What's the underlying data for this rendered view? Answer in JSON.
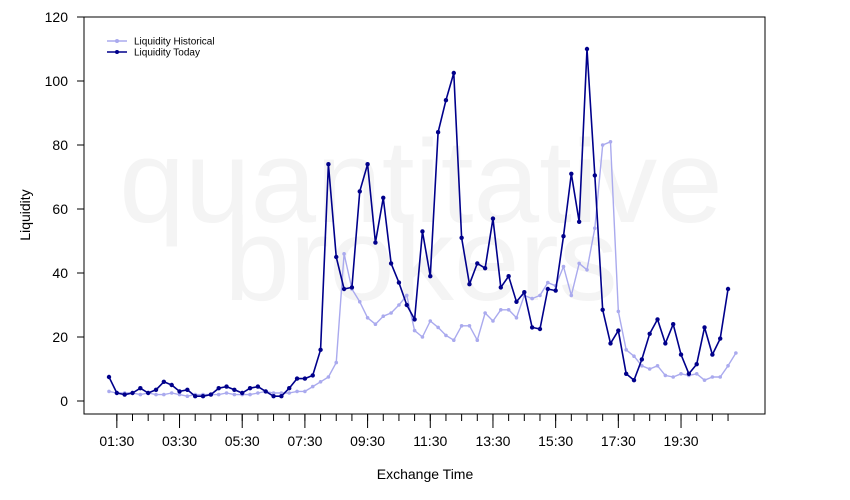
{
  "chart_data": {
    "type": "line",
    "title": "",
    "xlabel": "Exchange Time",
    "ylabel": "Liquidity",
    "ylim": [
      0,
      120
    ],
    "y_ticks": [
      0,
      20,
      40,
      60,
      80,
      100,
      120
    ],
    "x_tick_labels": [
      "01:30",
      "03:30",
      "05:30",
      "07:30",
      "09:30",
      "11:30",
      "13:30",
      "15:30",
      "17:30",
      "19:30"
    ],
    "watermark": [
      "quantitative",
      "brokers"
    ],
    "legend_position": "top-left",
    "grid": false,
    "series": [
      {
        "name": "Liquidity Historical",
        "color": "#aaaaee",
        "values": [
          3.0,
          2.5,
          2.5,
          2.5,
          2.0,
          2.5,
          2.0,
          2.0,
          2.5,
          2.0,
          1.5,
          2.0,
          2.0,
          2.0,
          2.0,
          2.5,
          2.0,
          2.0,
          2.0,
          2.5,
          3.0,
          2.5,
          2.5,
          2.5,
          3.0,
          3.0,
          4.5,
          6.0,
          7.5,
          12.0,
          46.0,
          35.0,
          31.0,
          26.0,
          24.0,
          26.5,
          27.5,
          30.0,
          33.0,
          22.0,
          20.0,
          25.0,
          23.0,
          20.5,
          19.0,
          23.5,
          23.5,
          19.0,
          27.5,
          25.0,
          28.5,
          28.5,
          26.0,
          33.0,
          32.0,
          33.0,
          37.0,
          36.0,
          42.0,
          33.0,
          43.0,
          41.0,
          54.0,
          80.0,
          81.0,
          28.0,
          16.0,
          14.0,
          11.0,
          10.0,
          11.0,
          8.0,
          7.5,
          8.5,
          8.0,
          8.5,
          6.5,
          7.5,
          7.5,
          11.0,
          15.0
        ]
      },
      {
        "name": "Liquidity Today",
        "color": "#00008b",
        "values": [
          7.5,
          2.5,
          2.0,
          2.5,
          4.0,
          2.5,
          3.5,
          6.0,
          5.0,
          3.0,
          3.5,
          1.5,
          1.5,
          2.0,
          4.0,
          4.5,
          3.5,
          2.5,
          4.0,
          4.5,
          3.0,
          1.5,
          1.5,
          4.0,
          7.0,
          7.0,
          8.0,
          16.0,
          74.0,
          45.0,
          35.0,
          35.5,
          65.5,
          74.0,
          49.5,
          63.5,
          43.0,
          37.0,
          30.0,
          25.5,
          53.0,
          39.0,
          84.0,
          94.0,
          102.5,
          51.0,
          36.5,
          43.0,
          41.5,
          57.0,
          35.5,
          39.0,
          31.0,
          34.0,
          23.0,
          22.5,
          35.0,
          34.5,
          51.5,
          71.0,
          56.0,
          110.0,
          70.5,
          28.5,
          18.0,
          22.0,
          8.5,
          6.5,
          13.0,
          21.0,
          25.5,
          18.0,
          24.0,
          14.5,
          8.5,
          11.5,
          23.0,
          14.5,
          19.5,
          35.0
        ]
      }
    ]
  }
}
